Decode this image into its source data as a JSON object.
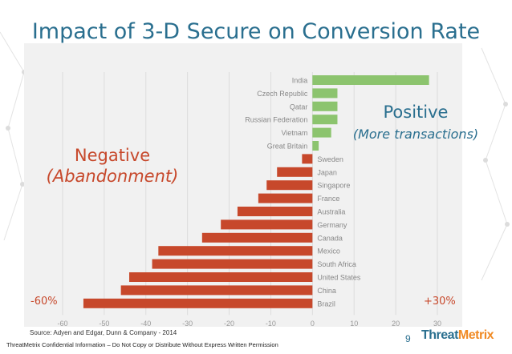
{
  "title": "Impact of 3-D Secure on Conversion Rate",
  "negative_label": "Negative",
  "negative_sub": "(Abandonment)",
  "positive_label": "Positive",
  "positive_sub": "(More transactions)",
  "left_extreme": "-60%",
  "right_extreme": "+30%",
  "source": "Source: Adyen and Edgar, Dunn & Company - 2014",
  "footer": "ThreatMetrix Confidential Information – Do Not Copy or Distribute Without Express Written Permission",
  "page_number": "9",
  "logo": {
    "part1": "Threat",
    "part2": "Metrix"
  },
  "colors": {
    "positive": "#8cc46e",
    "negative": "#c7482b",
    "title": "#2a6f8f"
  },
  "chart_data": {
    "type": "bar",
    "orientation": "horizontal",
    "categories": [
      "India",
      "Czech Republic",
      "Qatar",
      "Russian Federation",
      "Vietnam",
      "Great Britain",
      "Sweden",
      "Japan",
      "Singapore",
      "France",
      "Australia",
      "Germany",
      "Canada",
      "Mexico",
      "South Africa",
      "United States",
      "China",
      "Brazil"
    ],
    "values": [
      28,
      6,
      6,
      6,
      4.5,
      1.5,
      -2.5,
      -8.5,
      -11,
      -13,
      -18,
      -22,
      -26.5,
      -37,
      -38.5,
      -44,
      -46,
      -55
    ],
    "xlim": [
      -60,
      30
    ],
    "xticks": [
      -60,
      -50,
      -40,
      -30,
      -20,
      -10,
      0,
      10,
      20,
      30
    ],
    "grid": true
  }
}
